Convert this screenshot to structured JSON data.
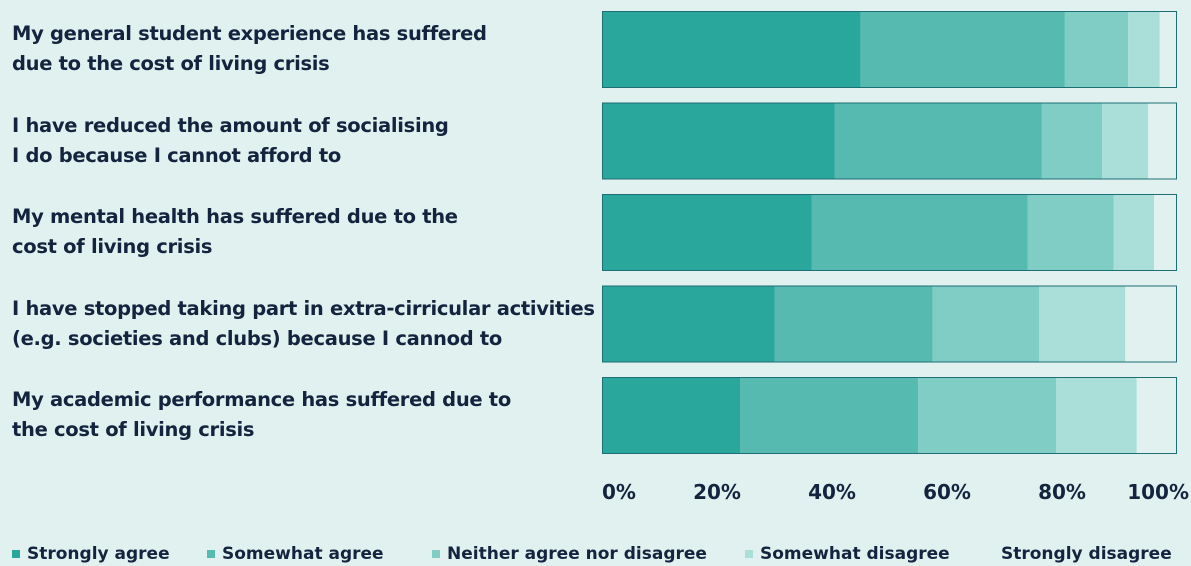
{
  "chart_data": {
    "type": "bar",
    "stacked": true,
    "orientation": "horizontal",
    "percent": true,
    "categories": [
      [
        "My general student experience has suffered",
        "due to the cost of living crisis"
      ],
      [
        "I have reduced the amount of socialising",
        "I do because I cannot afford to"
      ],
      [
        "My mental health has suffered due to the",
        "cost of living crisis"
      ],
      [
        "I have stopped taking part in extra-cirricular activities",
        "(e.g. societies and clubs) because I cannod to"
      ],
      [
        "My academic performance has suffered due to",
        "the cost of living crisis"
      ]
    ],
    "series": [
      {
        "name": "Strongly agree",
        "color": "#2aa79d",
        "values": [
          45,
          40.5,
          36.5,
          30,
          24
        ]
      },
      {
        "name": "Somewhat agree",
        "color": "#56bab1",
        "values": [
          35.5,
          36,
          37.5,
          27.5,
          31
        ]
      },
      {
        "name": "Neither agree nor disagree",
        "color": "#80cdc5",
        "values": [
          11,
          10.5,
          15,
          18.5,
          24
        ]
      },
      {
        "name": "Somewhat disagree",
        "color": "#aadfd9",
        "values": [
          5.5,
          8,
          7,
          15,
          14
        ]
      },
      {
        "name": "Strongly disagree",
        "color": "#e1f1ef",
        "values": [
          3,
          5,
          4,
          9,
          7
        ]
      }
    ],
    "xticks": [
      "0%",
      "20%",
      "40%",
      "60%",
      "80%",
      "100%"
    ],
    "xlim": [
      0,
      100
    ],
    "grid": false,
    "legend_position": "bottom"
  },
  "colors": {
    "background": "#e1f1ef",
    "bar_border": "#1e6e75",
    "text": "#14243f"
  }
}
